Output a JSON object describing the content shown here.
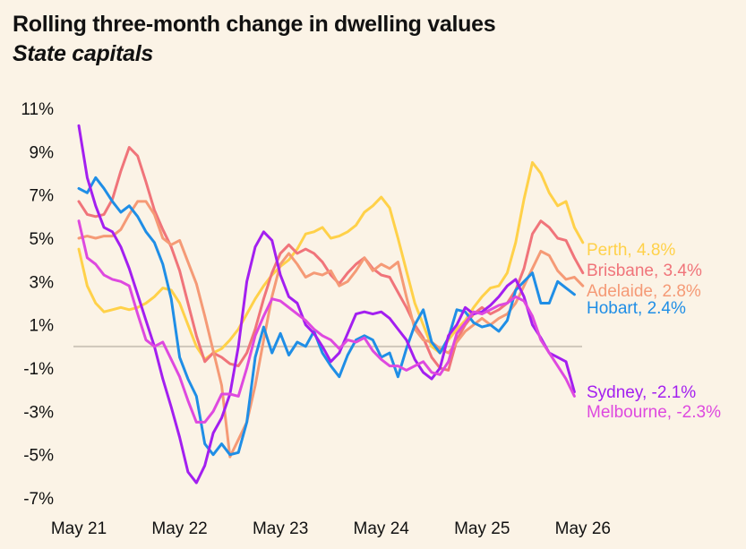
{
  "header": {
    "title": "Rolling three-month change in dwelling values",
    "subtitle": "State capitals"
  },
  "chart_data": {
    "type": "line",
    "title": "Rolling three-month change in dwelling values",
    "subtitle": "State capitals",
    "xlabel": "",
    "ylabel": "",
    "ylim": [
      -7.5,
      11.5
    ],
    "yticks": [
      11,
      9,
      7,
      5,
      3,
      1,
      -1,
      -3,
      -5,
      -7
    ],
    "ytick_labels": [
      "11%",
      "9%",
      "7%",
      "5%",
      "3%",
      "1%",
      "-1%",
      "-3%",
      "-5%",
      "-7%"
    ],
    "xlim": [
      0,
      62
    ],
    "xticks": [
      0,
      12,
      24,
      36,
      48,
      60
    ],
    "xtick_labels": [
      "May 21",
      "May 22",
      "May 23",
      "May 24",
      "May 25",
      "May 26"
    ],
    "zero_line": true,
    "grid": false,
    "legend": "inline labels at right end of lines",
    "series": [
      {
        "name": "Perth",
        "end_label": "Perth, 4.8%",
        "color": "#ffd149",
        "values": [
          4.5,
          2.8,
          2.0,
          1.6,
          1.7,
          1.8,
          1.7,
          1.8,
          2.0,
          2.3,
          2.7,
          2.6,
          2.0,
          1.0,
          0.0,
          -0.6,
          -0.3,
          -0.1,
          0.3,
          0.8,
          1.5,
          2.2,
          2.8,
          3.3,
          3.7,
          4.0,
          4.5,
          5.2,
          5.3,
          5.5,
          5.0,
          5.1,
          5.3,
          5.6,
          6.2,
          6.5,
          6.9,
          6.4,
          5.0,
          3.5,
          2.0,
          1.0,
          0.0,
          -0.3,
          0.3,
          0.8,
          1.2,
          1.8,
          2.3,
          2.7,
          2.8,
          3.4,
          4.8,
          6.8,
          8.5,
          8.0,
          7.1,
          6.5,
          6.7,
          5.5,
          4.8
        ]
      },
      {
        "name": "Brisbane",
        "end_label": "Brisbane, 3.4%",
        "color": "#f0747a",
        "values": [
          6.7,
          6.1,
          6.0,
          6.1,
          6.8,
          8.1,
          9.2,
          8.8,
          7.6,
          6.3,
          5.4,
          4.6,
          3.5,
          2.0,
          0.5,
          -0.7,
          -0.3,
          -0.5,
          -0.8,
          -0.9,
          -0.3,
          0.8,
          2.2,
          3.4,
          4.3,
          4.7,
          4.3,
          4.5,
          4.3,
          3.9,
          3.3,
          2.9,
          3.4,
          3.8,
          4.1,
          3.6,
          3.3,
          3.2,
          2.5,
          1.8,
          1.0,
          0.4,
          -0.5,
          -1.0,
          -1.1,
          0.3,
          1.0,
          1.5,
          1.8,
          1.5,
          1.7,
          2.0,
          2.6,
          3.6,
          5.2,
          5.8,
          5.5,
          5.0,
          4.9,
          4.1,
          3.4
        ]
      },
      {
        "name": "Adelaide",
        "end_label": "Adelaide, 2.8%",
        "color": "#f59a76",
        "values": [
          5.0,
          5.1,
          5.0,
          5.1,
          5.1,
          5.4,
          6.1,
          6.7,
          6.7,
          6.1,
          5.0,
          4.7,
          4.9,
          3.9,
          2.9,
          1.4,
          -0.2,
          -1.8,
          -5.1,
          -4.3,
          -3.5,
          -1.8,
          0.3,
          2.3,
          3.8,
          4.3,
          3.8,
          3.2,
          3.4,
          3.3,
          3.5,
          2.8,
          3.0,
          3.5,
          4.1,
          3.5,
          3.8,
          3.6,
          3.9,
          2.3,
          0.8,
          0.3,
          0.2,
          -0.1,
          -0.3,
          0.2,
          0.7,
          1.0,
          1.3,
          1.0,
          1.3,
          1.5,
          2.0,
          2.8,
          3.6,
          4.4,
          4.2,
          3.5,
          3.1,
          3.2,
          2.8
        ]
      },
      {
        "name": "Hobart",
        "end_label": "Hobart, 2.4%",
        "color": "#1f8ee6",
        "values": [
          7.3,
          7.1,
          7.8,
          7.3,
          6.7,
          6.2,
          6.5,
          6.0,
          5.3,
          4.8,
          3.8,
          2.2,
          -0.5,
          -1.5,
          -2.3,
          -4.5,
          -5.0,
          -4.5,
          -5.0,
          -4.9,
          -3.5,
          -0.5,
          0.9,
          -0.3,
          0.6,
          -0.4,
          0.2,
          0.0,
          0.7,
          -0.3,
          -0.9,
          -1.4,
          -0.4,
          0.3,
          0.5,
          0.3,
          -0.5,
          -0.3,
          -1.4,
          -0.1,
          1.0,
          1.7,
          0.2,
          -0.3,
          0.4,
          1.7,
          1.6,
          1.1,
          0.9,
          1.0,
          0.7,
          1.2,
          2.6,
          3.0,
          3.4,
          2.0,
          2.0,
          3.0,
          2.7,
          2.4
        ]
      },
      {
        "name": "Sydney",
        "end_label": "Sydney, -2.1%",
        "color": "#a31ff0",
        "values": [
          10.2,
          7.8,
          6.5,
          5.5,
          5.3,
          4.6,
          3.6,
          2.4,
          1.2,
          0.0,
          -1.5,
          -2.8,
          -4.2,
          -5.8,
          -6.3,
          -5.5,
          -4.0,
          -3.3,
          -2.2,
          0.0,
          3.0,
          4.6,
          5.3,
          4.9,
          3.3,
          2.3,
          2.0,
          1.0,
          0.6,
          0.0,
          -0.7,
          -0.3,
          0.6,
          1.5,
          1.6,
          1.5,
          1.6,
          1.3,
          0.8,
          0.3,
          -0.6,
          -1.2,
          -1.5,
          -1.0,
          0.5,
          1.0,
          1.8,
          1.5,
          1.6,
          1.9,
          2.3,
          2.8,
          3.1,
          2.3,
          1.0,
          0.4,
          -0.3,
          -0.5,
          -0.7,
          -2.1
        ]
      },
      {
        "name": "Melbourne",
        "end_label": "Melbourne, -2.3%",
        "color": "#de49df",
        "values": [
          5.8,
          4.1,
          3.8,
          3.3,
          3.1,
          3.0,
          2.8,
          1.5,
          0.3,
          0.0,
          0.2,
          -0.6,
          -1.4,
          -2.5,
          -3.5,
          -3.5,
          -3.0,
          -2.2,
          -2.2,
          -2.3,
          -1.0,
          0.5,
          1.4,
          2.2,
          2.1,
          1.8,
          1.5,
          1.2,
          0.8,
          0.5,
          0.3,
          -0.1,
          0.3,
          0.2,
          0.4,
          -0.2,
          -0.6,
          -0.9,
          -0.9,
          -1.1,
          -0.9,
          -0.7,
          -1.2,
          -1.3,
          -0.7,
          0.6,
          1.1,
          1.6,
          1.5,
          1.7,
          1.9,
          2.0,
          2.3,
          2.1,
          1.4,
          0.3,
          -0.3,
          -0.9,
          -1.5,
          -2.3
        ]
      }
    ]
  }
}
